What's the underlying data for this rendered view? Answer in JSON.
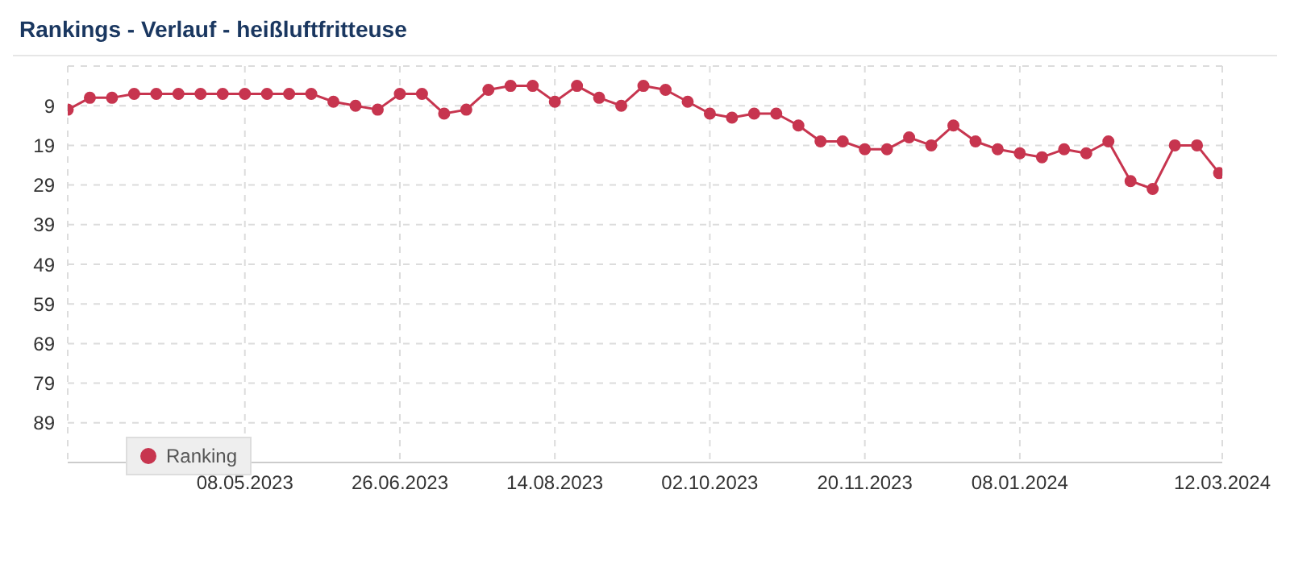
{
  "chart_data": {
    "type": "line",
    "title": "Rankings - Verlauf - heißluftfritteuse",
    "x": [
      "2023-03-13",
      "2023-03-20",
      "2023-03-27",
      "2023-04-03",
      "2023-04-10",
      "2023-04-17",
      "2023-04-24",
      "2023-05-01",
      "2023-05-08",
      "2023-05-15",
      "2023-05-22",
      "2023-05-29",
      "2023-06-05",
      "2023-06-12",
      "2023-06-19",
      "2023-06-26",
      "2023-07-03",
      "2023-07-10",
      "2023-07-17",
      "2023-07-24",
      "2023-07-31",
      "2023-08-07",
      "2023-08-14",
      "2023-08-21",
      "2023-08-28",
      "2023-09-04",
      "2023-09-11",
      "2023-09-18",
      "2023-09-25",
      "2023-10-02",
      "2023-10-09",
      "2023-10-16",
      "2023-10-23",
      "2023-10-30",
      "2023-11-06",
      "2023-11-13",
      "2023-11-20",
      "2023-11-27",
      "2023-12-04",
      "2023-12-11",
      "2023-12-18",
      "2023-12-25",
      "2024-01-01",
      "2024-01-08",
      "2024-01-15",
      "2024-01-22",
      "2024-01-29",
      "2024-02-05",
      "2024-02-12",
      "2024-02-19",
      "2024-02-26",
      "2024-03-04",
      "2024-03-11"
    ],
    "series": [
      {
        "name": "Ranking",
        "color": "#c7354f",
        "values": [
          10,
          7,
          7,
          6,
          6,
          6,
          6,
          6,
          6,
          6,
          6,
          6,
          8,
          9,
          10,
          6,
          6,
          11,
          10,
          5,
          4,
          4,
          8,
          4,
          7,
          9,
          4,
          5,
          8,
          11,
          12,
          11,
          11,
          14,
          18,
          18,
          20,
          20,
          17,
          19,
          14,
          18,
          20,
          21,
          22,
          20,
          21,
          18,
          28,
          30,
          19,
          19,
          26
        ]
      }
    ],
    "xlim": [
      "2023-03-13",
      "2024-03-12"
    ],
    "xticks": [
      {
        "value": "2023-05-08",
        "label": "08.05.2023"
      },
      {
        "value": "2023-06-26",
        "label": "26.06.2023"
      },
      {
        "value": "2023-08-14",
        "label": "14.08.2023"
      },
      {
        "value": "2023-10-02",
        "label": "02.10.2023"
      },
      {
        "value": "2023-11-20",
        "label": "20.11.2023"
      },
      {
        "value": "2024-01-08",
        "label": "08.01.2024"
      },
      {
        "value": "2024-03-12",
        "label": "12.03.2024"
      }
    ],
    "ylim": [
      99,
      -1
    ],
    "yticks": [
      9,
      19,
      29,
      39,
      49,
      59,
      69,
      79,
      89
    ],
    "grid": true,
    "legend": "bottom left",
    "marker": "circle",
    "line_style": "solid"
  }
}
